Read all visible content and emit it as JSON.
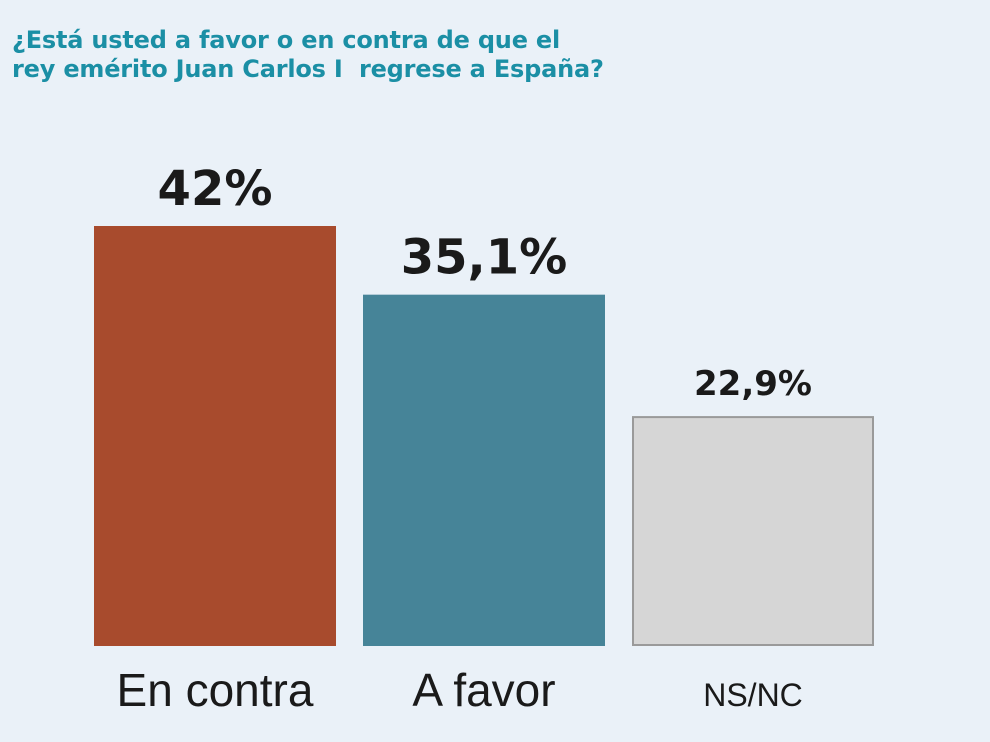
{
  "chart_data": {
    "type": "bar",
    "title": "¿Está usted a favor o en contra de que el rey emérito Juan Carlos I  regrese a España?",
    "title_lines": [
      "¿Está usted a favor o en contra de que el",
      "rey emérito Juan Carlos I  regrese a España?"
    ],
    "categories": [
      "En contra",
      "A favor",
      "NS/NC"
    ],
    "values": [
      42,
      35.1,
      22.9
    ],
    "value_labels": [
      "42%",
      "35,1%",
      "22,9%"
    ],
    "colors": [
      "#a84b2d",
      "#468498",
      "#d6d6d6"
    ],
    "border_colors": [
      "#a84b2d",
      "#468498",
      "#9a9a9a"
    ],
    "ylim": [
      0,
      42
    ],
    "grid": false,
    "legend": "none"
  }
}
